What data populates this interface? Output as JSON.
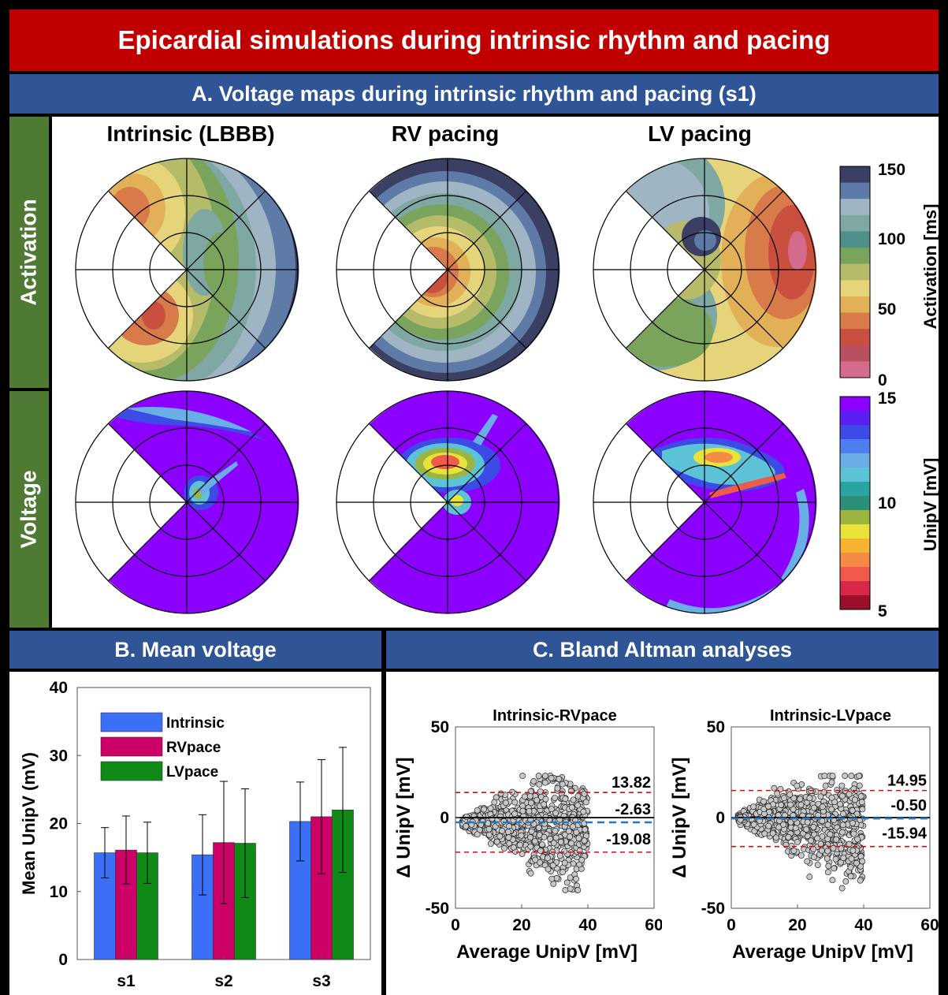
{
  "title": "Epicardial simulations during intrinsic rhythm and pacing",
  "panel_a": {
    "title": "A. Voltage maps during intrinsic rhythm and pacing (s1)",
    "columns": [
      "Intrinsic (LBBB)",
      "RV pacing",
      "LV pacing"
    ],
    "rows": [
      "Activation",
      "Voltage"
    ],
    "activation_colorbar": {
      "label": "Activation [ms]",
      "ticks": [
        "150",
        "100",
        "50",
        "0"
      ],
      "colors": [
        "#3a3f63",
        "#5e7aa6",
        "#9fb5c4",
        "#7fa7a3",
        "#4e8f8c",
        "#7aa35c",
        "#b6bb6a",
        "#e6d47a",
        "#e2b056",
        "#d87a4a",
        "#c9503f",
        "#b85060",
        "#d56b8b"
      ]
    },
    "voltage_colorbar": {
      "label": "UnipV [mV]",
      "ticks": [
        "15",
        "10",
        "5"
      ],
      "colors": [
        "#8b00ff",
        "#5b1ff2",
        "#3d4be6",
        "#4f7fee",
        "#6aaee8",
        "#5cc2d6",
        "#2aa3a3",
        "#2e8f78",
        "#9bb53f",
        "#e8e23a",
        "#f5b331",
        "#f58a45",
        "#ef5a4b",
        "#d7284a",
        "#9a0f2a"
      ]
    }
  },
  "panel_b": {
    "title": "B. Mean voltage"
  },
  "panel_c": {
    "title": "C. Bland Altman analyses"
  },
  "chart_data": [
    {
      "type": "bar",
      "title": "",
      "xlabel": "",
      "ylabel": "Mean UnipV (mV)",
      "categories": [
        "s1",
        "s2",
        "s3"
      ],
      "ylim": [
        0,
        40
      ],
      "yticks": [
        "0",
        "10",
        "20",
        "30",
        "40"
      ],
      "series": [
        {
          "name": "Intrinsic",
          "color": "#3b6ff5",
          "values": [
            15.7,
            15.4,
            20.3
          ],
          "error": [
            3.7,
            5.9,
            5.8
          ]
        },
        {
          "name": "RVpace",
          "color": "#cc0066",
          "values": [
            16.1,
            17.2,
            21.0
          ],
          "error": [
            5.0,
            9.0,
            8.4
          ]
        },
        {
          "name": "LVpace",
          "color": "#0f8a16",
          "values": [
            15.7,
            17.1,
            22.0
          ],
          "error": [
            4.5,
            8.0,
            9.2
          ]
        }
      ],
      "legend": "top-left",
      "grid": false
    },
    {
      "type": "scatter",
      "title": "Intrinsic-RVpace",
      "xlabel": "Average UnipV [mV]",
      "ylabel": "Δ UnipV [mV]",
      "xlim": [
        0,
        60
      ],
      "ylim": [
        -50,
        50
      ],
      "xticks": [
        "0",
        "20",
        "40",
        "60"
      ],
      "yticks": [
        "50",
        "0",
        "-50"
      ],
      "mean_diff": -2.63,
      "upper_loa": 13.82,
      "lower_loa": -19.08,
      "labels": [
        "13.82",
        "-2.63",
        "-19.08"
      ]
    },
    {
      "type": "scatter",
      "title": "Intrinsic-LVpace",
      "xlabel": "Average UnipV [mV]",
      "ylabel": "Δ UnipV [mV]",
      "xlim": [
        0,
        60
      ],
      "ylim": [
        -50,
        50
      ],
      "xticks": [
        "0",
        "20",
        "40",
        "60"
      ],
      "yticks": [
        "50",
        "0",
        "-50"
      ],
      "mean_diff": -0.5,
      "upper_loa": 14.95,
      "lower_loa": -15.94,
      "labels": [
        "14.95",
        "-0.50",
        "-15.94"
      ]
    }
  ]
}
